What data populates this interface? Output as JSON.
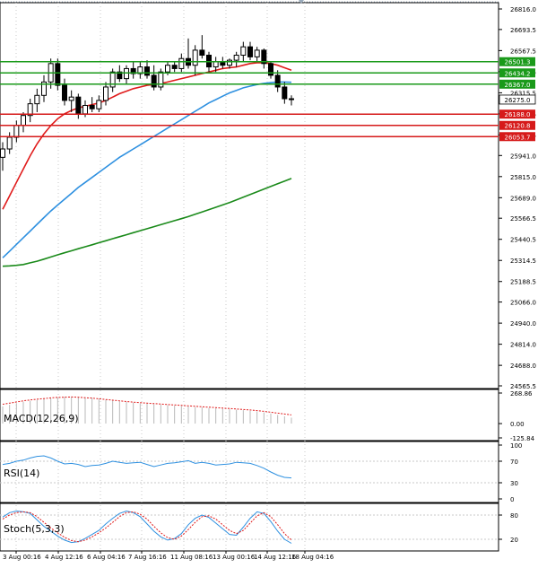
{
  "chart_data": [
    {
      "type": "candlestick",
      "panel": "price",
      "y_ticks": [
        "26816.0",
        "26693.5",
        "26567.5",
        "26441.5",
        "26315.5",
        "26189.5",
        "26063.5",
        "25941.0",
        "25815.0",
        "25689.0",
        "25566.5",
        "25440.5",
        "25314.5",
        "25188.5",
        "25066.0",
        "24940.0",
        "24814.0",
        "24688.0",
        "24565.5"
      ],
      "ylim": [
        24565.5,
        26816.0
      ],
      "x_ticks": [
        "3 Aug 00:16",
        "4 Aug 12:16",
        "6 Aug 04:16",
        "7 Aug 16:16",
        "11 Aug 08:16",
        "13 Aug 00:16",
        "14 Aug 12:16",
        "18 Aug 04:16"
      ],
      "levels": [
        {
          "value": "26501.3",
          "color": "#1a9a1a"
        },
        {
          "value": "26434.2",
          "color": "#1a9a1a"
        },
        {
          "value": "26367.0",
          "color": "#1a9a1a"
        },
        {
          "value": "26188.0",
          "color": "#d61a1a"
        },
        {
          "value": "26120.8",
          "color": "#d61a1a"
        },
        {
          "value": "26053.7",
          "color": "#d61a1a"
        }
      ],
      "current_price": {
        "value": "26275.0",
        "color": "#000000"
      },
      "candles": [
        {
          "o": 25930,
          "h": 26020,
          "l": 25850,
          "c": 25980
        },
        {
          "o": 25980,
          "h": 26080,
          "l": 25950,
          "c": 26050
        },
        {
          "o": 26050,
          "h": 26150,
          "l": 26020,
          "c": 26120
        },
        {
          "o": 26120,
          "h": 26200,
          "l": 26080,
          "c": 26180
        },
        {
          "o": 26180,
          "h": 26280,
          "l": 26140,
          "c": 26250
        },
        {
          "o": 26250,
          "h": 26340,
          "l": 26200,
          "c": 26300
        },
        {
          "o": 26300,
          "h": 26420,
          "l": 26260,
          "c": 26380
        },
        {
          "o": 26380,
          "h": 26520,
          "l": 26340,
          "c": 26490
        },
        {
          "o": 26490,
          "h": 26520,
          "l": 26330,
          "c": 26360
        },
        {
          "o": 26360,
          "h": 26400,
          "l": 26240,
          "c": 26270
        },
        {
          "o": 26270,
          "h": 26330,
          "l": 26200,
          "c": 26290
        },
        {
          "o": 26290,
          "h": 26310,
          "l": 26160,
          "c": 26190
        },
        {
          "o": 26190,
          "h": 26270,
          "l": 26170,
          "c": 26240
        },
        {
          "o": 26240,
          "h": 26290,
          "l": 26200,
          "c": 26220
        },
        {
          "o": 26220,
          "h": 26300,
          "l": 26200,
          "c": 26270
        },
        {
          "o": 26270,
          "h": 26380,
          "l": 26240,
          "c": 26350
        },
        {
          "o": 26350,
          "h": 26460,
          "l": 26320,
          "c": 26440
        },
        {
          "o": 26440,
          "h": 26480,
          "l": 26380,
          "c": 26400
        },
        {
          "o": 26400,
          "h": 26480,
          "l": 26370,
          "c": 26460
        },
        {
          "o": 26460,
          "h": 26500,
          "l": 26400,
          "c": 26430
        },
        {
          "o": 26430,
          "h": 26500,
          "l": 26400,
          "c": 26470
        },
        {
          "o": 26470,
          "h": 26510,
          "l": 26400,
          "c": 26420
        },
        {
          "o": 26420,
          "h": 26480,
          "l": 26330,
          "c": 26350
        },
        {
          "o": 26350,
          "h": 26460,
          "l": 26330,
          "c": 26440
        },
        {
          "o": 26440,
          "h": 26500,
          "l": 26420,
          "c": 26480
        },
        {
          "o": 26480,
          "h": 26500,
          "l": 26440,
          "c": 26460
        },
        {
          "o": 26460,
          "h": 26550,
          "l": 26440,
          "c": 26520
        },
        {
          "o": 26520,
          "h": 26640,
          "l": 26460,
          "c": 26480
        },
        {
          "o": 26480,
          "h": 26600,
          "l": 26420,
          "c": 26570
        },
        {
          "o": 26570,
          "h": 26660,
          "l": 26520,
          "c": 26540
        },
        {
          "o": 26540,
          "h": 26560,
          "l": 26440,
          "c": 26470
        },
        {
          "o": 26470,
          "h": 26530,
          "l": 26440,
          "c": 26500
        },
        {
          "o": 26500,
          "h": 26530,
          "l": 26460,
          "c": 26480
        },
        {
          "o": 26480,
          "h": 26520,
          "l": 26460,
          "c": 26510
        },
        {
          "o": 26510,
          "h": 26560,
          "l": 26470,
          "c": 26540
        },
        {
          "o": 26540,
          "h": 26620,
          "l": 26500,
          "c": 26590
        },
        {
          "o": 26590,
          "h": 26620,
          "l": 26510,
          "c": 26530
        },
        {
          "o": 26530,
          "h": 26590,
          "l": 26500,
          "c": 26570
        },
        {
          "o": 26570,
          "h": 26580,
          "l": 26460,
          "c": 26490
        },
        {
          "o": 26490,
          "h": 26500,
          "l": 26400,
          "c": 26420
        },
        {
          "o": 26420,
          "h": 26450,
          "l": 26320,
          "c": 26350
        },
        {
          "o": 26350,
          "h": 26380,
          "l": 26250,
          "c": 26280
        },
        {
          "o": 26280,
          "h": 26300,
          "l": 26240,
          "c": 26275
        }
      ],
      "series": [
        {
          "name": "",
          "color": "#e01b1b",
          "values": [
            25620,
            25700,
            25780,
            25860,
            25940,
            26010,
            26070,
            26120,
            26160,
            26190,
            26210,
            26225,
            26235,
            26245,
            26255,
            26270,
            26290,
            26310,
            26325,
            26340,
            26350,
            26360,
            26365,
            26370,
            26380,
            26390,
            26400,
            26410,
            26420,
            26430,
            26440,
            26450,
            26460,
            26465,
            26470,
            26480,
            26490,
            26495,
            26495,
            26490,
            26480,
            26465,
            26450
          ]
        },
        {
          "name": "",
          "color": "#2e90e0",
          "values": [
            25330,
            25370,
            25410,
            25450,
            25490,
            25530,
            25570,
            25610,
            25645,
            25680,
            25715,
            25750,
            25780,
            25810,
            25840,
            25870,
            25900,
            25930,
            25955,
            25980,
            26005,
            26030,
            26055,
            26080,
            26105,
            26130,
            26155,
            26180,
            26205,
            26230,
            26255,
            26275,
            26295,
            26315,
            26330,
            26345,
            26355,
            26365,
            26372,
            26376,
            26380,
            26380,
            26378
          ]
        },
        {
          "name": "",
          "color": "#1a8a1a",
          "values": [
            25280,
            25282,
            25285,
            25290,
            25300,
            25310,
            25322,
            25335,
            25348,
            25360,
            25372,
            25384,
            25396,
            25408,
            25420,
            25432,
            25444,
            25456,
            25468,
            25480,
            25492,
            25504,
            25516,
            25528,
            25540,
            25552,
            25564,
            25576,
            25590,
            25604,
            25618,
            25632,
            25646,
            25660,
            25676,
            25692,
            25708,
            25724,
            25740,
            25756,
            25772,
            25788,
            25804
          ]
        }
      ]
    },
    {
      "type": "histogram",
      "panel": "macd",
      "label": "MACD(12,26,9)",
      "y_ticks": [
        "268.86",
        "0.00",
        "-125.84"
      ],
      "ylim": [
        -125.84,
        268.86
      ],
      "histogram": [
        150,
        165,
        180,
        192,
        200,
        208,
        215,
        222,
        230,
        235,
        238,
        236,
        232,
        226,
        218,
        210,
        202,
        196,
        190,
        184,
        178,
        174,
        170,
        166,
        162,
        158,
        154,
        150,
        146,
        142,
        138,
        134,
        130,
        126,
        122,
        118,
        112,
        106,
        98,
        88,
        76,
        64,
        52
      ],
      "signal": [
        170,
        180,
        190,
        200,
        208,
        214,
        220,
        226,
        230,
        232,
        234,
        232,
        228,
        224,
        218,
        212,
        206,
        200,
        194,
        188,
        184,
        180,
        176,
        172,
        168,
        164,
        160,
        156,
        152,
        148,
        144,
        140,
        136,
        132,
        128,
        124,
        120,
        114,
        108,
        100,
        92,
        84,
        76
      ]
    },
    {
      "type": "line",
      "panel": "rsi",
      "label": "RSI(14)",
      "y_ticks": [
        "100",
        "70",
        "30",
        "0"
      ],
      "ylim": [
        0,
        100
      ],
      "series": [
        {
          "name": "",
          "color": "#2e90e0",
          "values": [
            64,
            66,
            70,
            72,
            76,
            79,
            80,
            76,
            70,
            65,
            66,
            64,
            60,
            62,
            63,
            66,
            70,
            68,
            66,
            67,
            68,
            64,
            60,
            63,
            66,
            67,
            69,
            71,
            66,
            68,
            66,
            63,
            64,
            65,
            68,
            67,
            66,
            62,
            57,
            50,
            44,
            40,
            39
          ]
        }
      ]
    },
    {
      "type": "line",
      "panel": "stoch",
      "label": "Stoch(5,3,3)",
      "y_ticks": [
        "80",
        "20"
      ],
      "ylim": [
        0,
        100
      ],
      "series": [
        {
          "name": "",
          "color": "#2e90e0",
          "values": [
            75,
            86,
            90,
            88,
            84,
            68,
            52,
            40,
            28,
            18,
            12,
            14,
            22,
            32,
            42,
            58,
            72,
            84,
            90,
            86,
            76,
            58,
            40,
            26,
            18,
            22,
            34,
            56,
            72,
            80,
            74,
            60,
            46,
            32,
            30,
            50,
            72,
            88,
            84,
            64,
            40,
            20,
            10
          ]
        },
        {
          "name": "",
          "color": "#e01b1b",
          "values": [
            70,
            80,
            86,
            88,
            86,
            76,
            62,
            48,
            36,
            25,
            17,
            14,
            18,
            26,
            36,
            48,
            62,
            76,
            86,
            88,
            82,
            70,
            52,
            36,
            24,
            20,
            28,
            44,
            62,
            76,
            78,
            70,
            56,
            42,
            34,
            42,
            60,
            78,
            86,
            76,
            56,
            34,
            18
          ]
        }
      ]
    }
  ]
}
